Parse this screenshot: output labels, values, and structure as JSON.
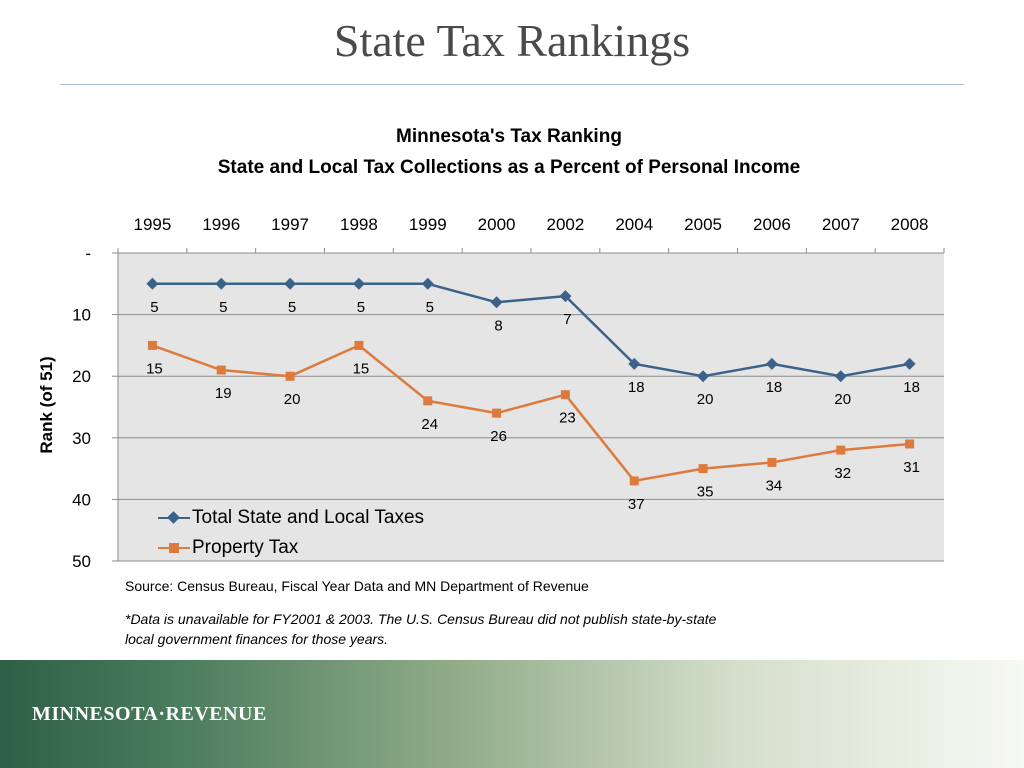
{
  "slide": {
    "title": "State Tax Rankings",
    "source": "Source: Census Bureau, Fiscal Year Data and MN Department of Revenue",
    "footnote_line1": "*Data is unavailable for FY2001 & 2003. The U.S. Census Bureau did not publish state-by-state",
    "footnote_line2": "local government finances for those years.",
    "footer_logo": "MINNESOTA·REVENUE"
  },
  "colors": {
    "total_series": "#3b6289",
    "property_series": "#dd7b3e",
    "plot_background": "#e5e5e5",
    "gridline": "#8c8c8c"
  },
  "chart_data": {
    "type": "line",
    "title": "Minnesota's Tax Ranking",
    "subtitle": "State and Local Tax Collections as a Percent of Personal Income",
    "ylabel": "Rank (of 51)",
    "xlabel": "",
    "categories": [
      "1995",
      "1996",
      "1997",
      "1998",
      "1999",
      "2000",
      "2002",
      "2004",
      "2005",
      "2006",
      "2007",
      "2008"
    ],
    "ylim": [
      0,
      50
    ],
    "y_inverted": true,
    "y_ticks": [
      0,
      10,
      20,
      30,
      40,
      50
    ],
    "y_tick_labels": [
      "-",
      "10",
      "20",
      "30",
      "40",
      "50"
    ],
    "x_axis_position": "top",
    "grid": true,
    "legend_position": "bottom-left",
    "series": [
      {
        "name": "Total State and Local Taxes",
        "marker": "diamond",
        "values": [
          5,
          5,
          5,
          5,
          5,
          8,
          7,
          18,
          20,
          18,
          20,
          18
        ]
      },
      {
        "name": "Property Tax",
        "marker": "square",
        "values": [
          15,
          19,
          20,
          15,
          24,
          26,
          23,
          37,
          35,
          34,
          32,
          31
        ]
      }
    ]
  }
}
